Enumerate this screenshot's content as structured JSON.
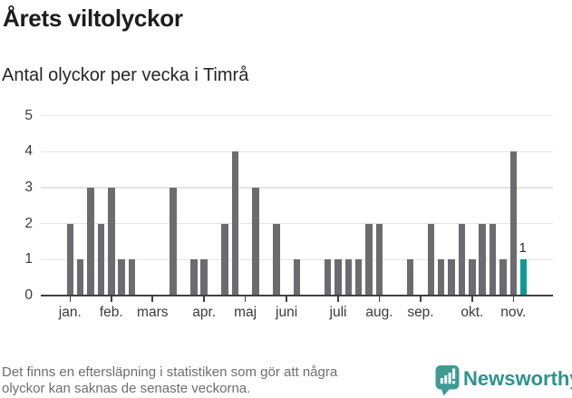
{
  "header": {
    "title": "Årets viltolyckor",
    "subtitle": "Antal olyckor per vecka i Timrå"
  },
  "chart_data": {
    "type": "bar",
    "x_unit": "week",
    "n_weeks": 45,
    "values": [
      2,
      1,
      3,
      2,
      3,
      1,
      1,
      0,
      0,
      0,
      3,
      0,
      1,
      1,
      0,
      2,
      4,
      0,
      3,
      0,
      2,
      0,
      1,
      0,
      0,
      1,
      1,
      1,
      1,
      2,
      2,
      0,
      0,
      1,
      0,
      2,
      1,
      1,
      2,
      1,
      2,
      2,
      1,
      4,
      1
    ],
    "highlight_index": 44,
    "highlight_label": "1",
    "ylim": [
      0,
      5
    ],
    "yticks": [
      "0",
      "1",
      "2",
      "3",
      "4",
      "5"
    ],
    "month_ticks": [
      {
        "week": 1,
        "label": "jan."
      },
      {
        "week": 5,
        "label": "feb."
      },
      {
        "week": 9,
        "label": "mars"
      },
      {
        "week": 14,
        "label": "apr."
      },
      {
        "week": 18,
        "label": "maj"
      },
      {
        "week": 22,
        "label": "juni"
      },
      {
        "week": 27,
        "label": "juli"
      },
      {
        "week": 31,
        "label": "aug."
      },
      {
        "week": 35,
        "label": "sep."
      },
      {
        "week": 40,
        "label": "okt."
      },
      {
        "week": 44,
        "label": "nov."
      }
    ],
    "grid": true,
    "legend": false,
    "colors": {
      "bar": "#6c6c70",
      "highlight": "#0b9b94",
      "grid": "#e4e4e4",
      "axis": "#414141"
    }
  },
  "footer": {
    "note_line1": "Det finns en eftersläpning i statistiken som gör att några",
    "note_line2": "olyckor kan saknas de senaste veckorna.",
    "brand": "Newsworthy",
    "brand_color": "#2d948c",
    "brand_icon_color": "#3f9b94"
  }
}
